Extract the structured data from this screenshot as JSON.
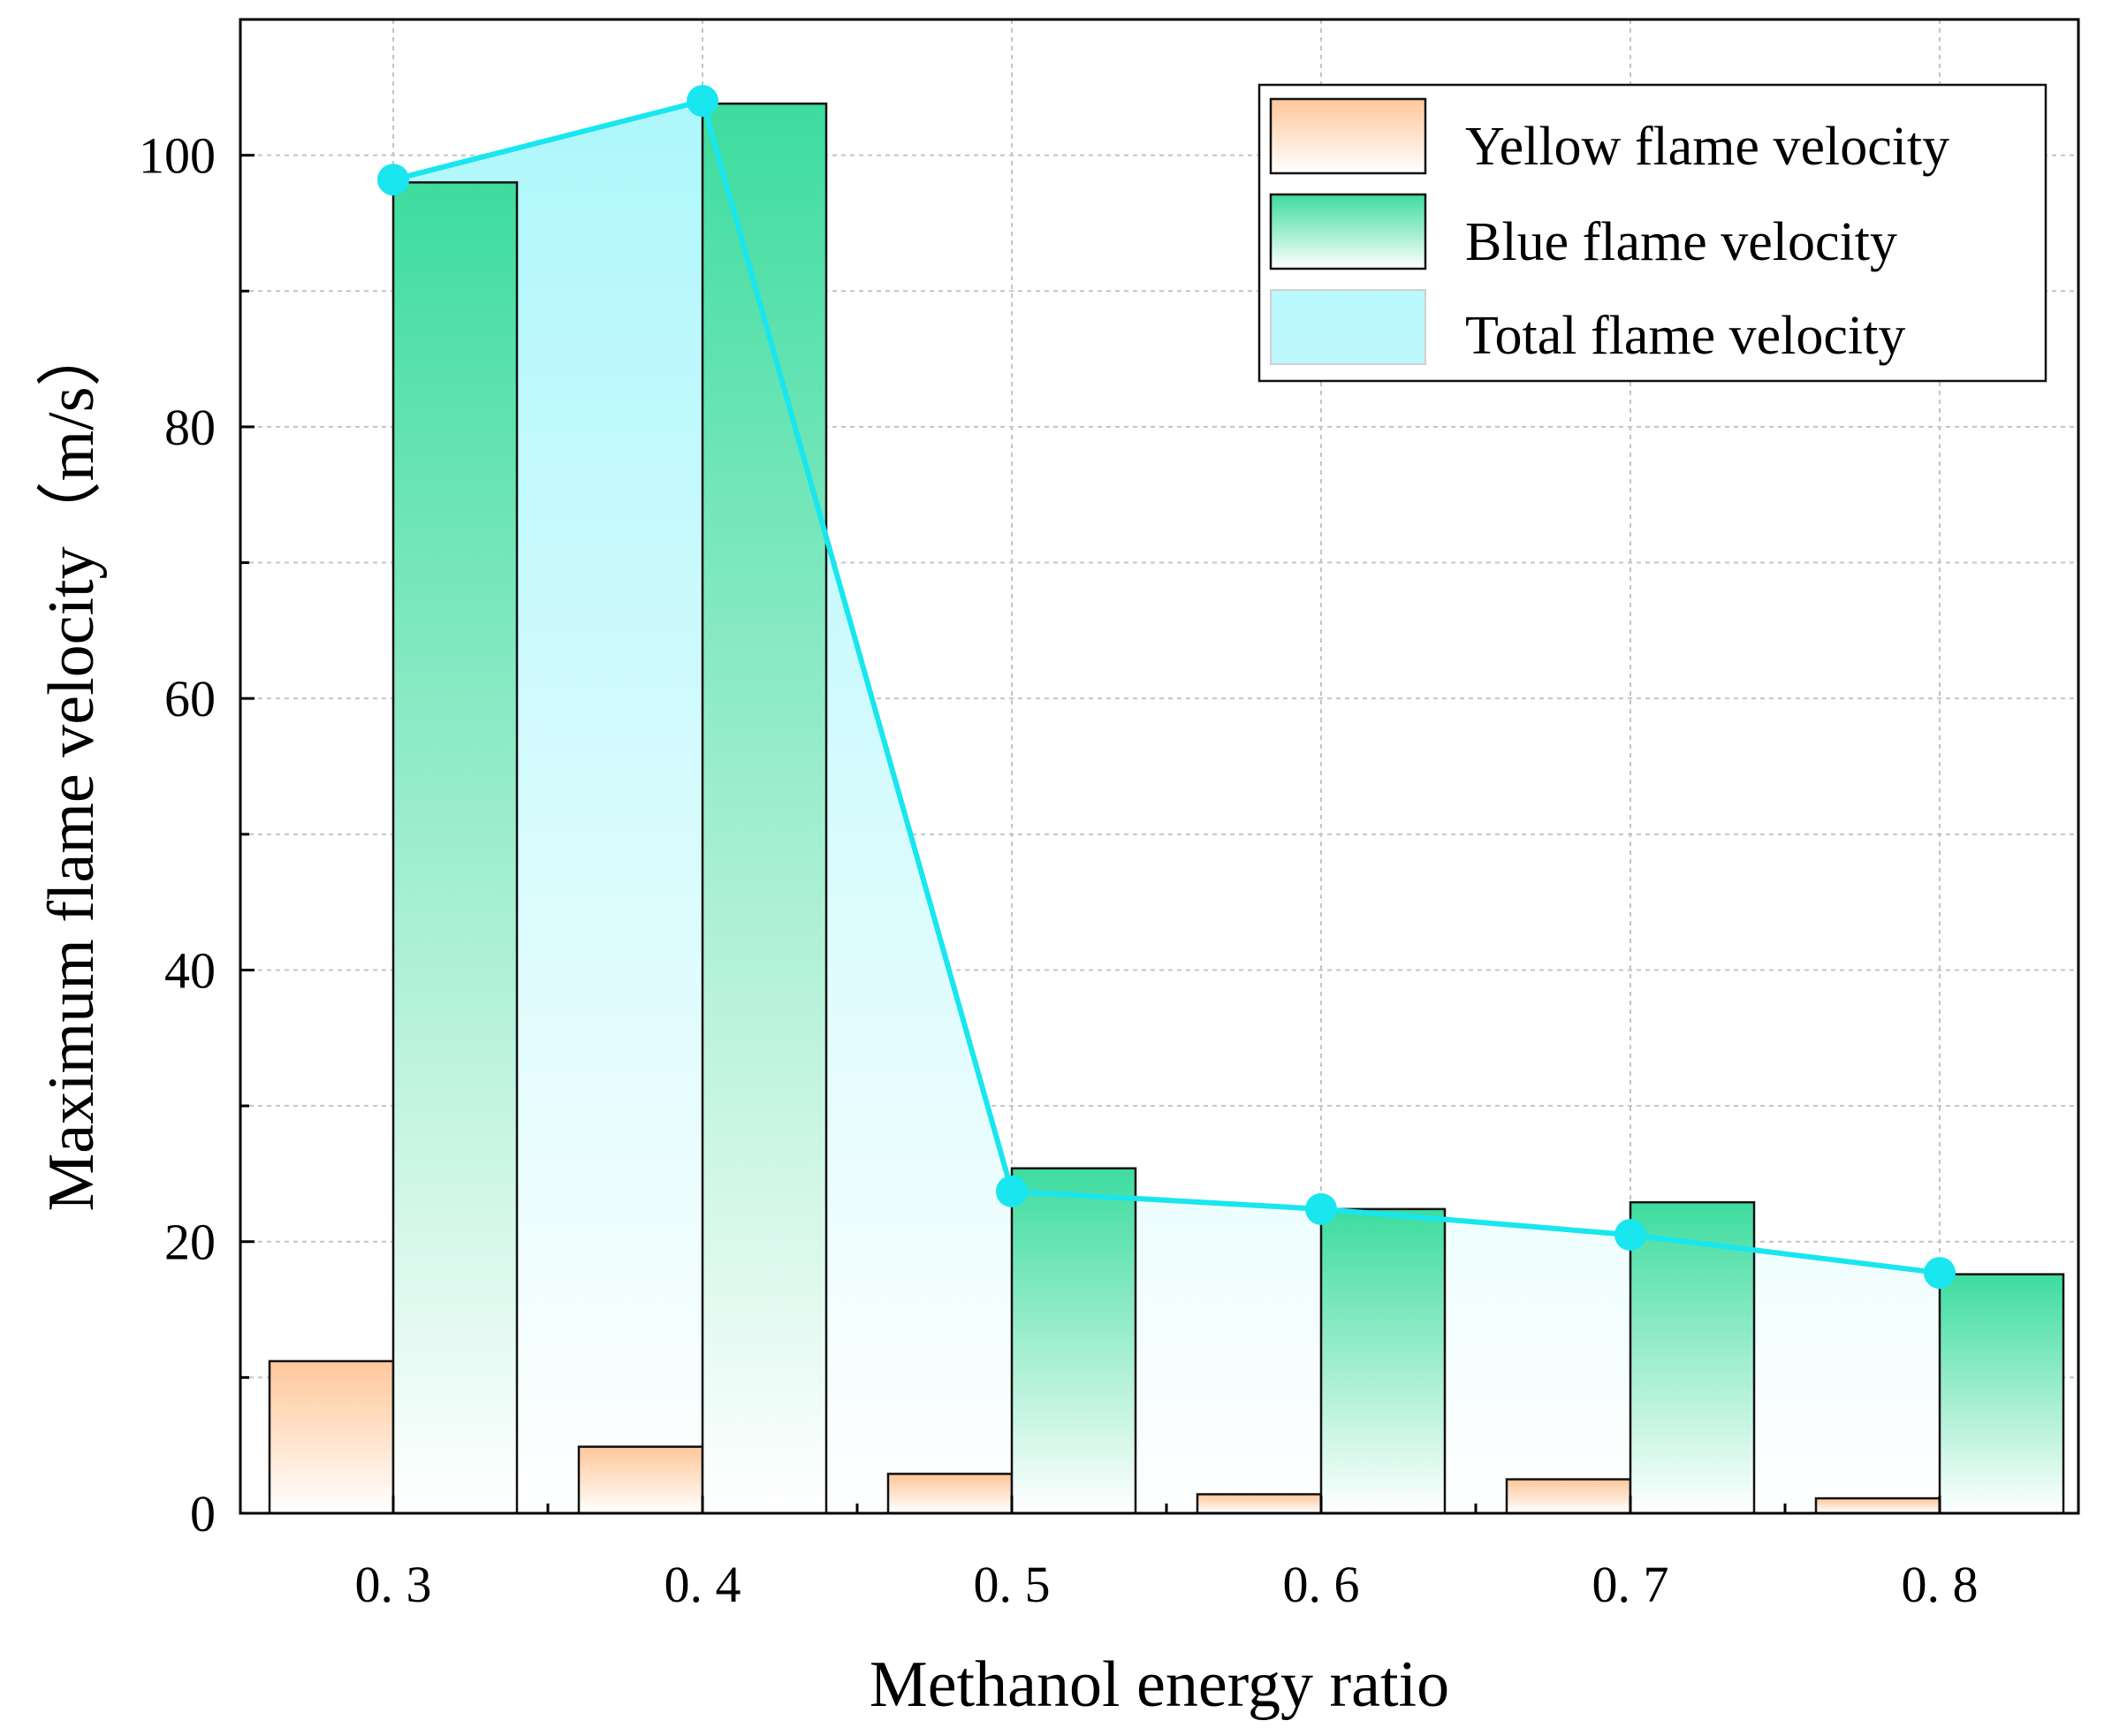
{
  "chart_data": {
    "type": "bar",
    "title": "",
    "xlabel": "Methanol energy ratio",
    "ylabel": "Maximum flame velocity（m/s）",
    "categories": [
      "0. 3",
      "0. 4",
      "0. 5",
      "0. 6",
      "0. 7",
      "0. 8"
    ],
    "ylim": [
      0,
      110
    ],
    "yticks": [
      0,
      20,
      40,
      60,
      80,
      100
    ],
    "grid": true,
    "legend_position": "top-right",
    "series": [
      {
        "name": "Yellow flame velocity",
        "kind": "bar",
        "color_top": "#ffc79a",
        "color_bottom": "#ffffff",
        "values": [
          11.2,
          4.9,
          2.9,
          1.4,
          2.5,
          1.1
        ]
      },
      {
        "name": "Blue flame velocity",
        "kind": "bar",
        "color_top": "#3ddc9e",
        "color_bottom": "#ffffff",
        "values": [
          98.0,
          103.8,
          25.4,
          22.4,
          22.9,
          17.6
        ]
      },
      {
        "name": "Total flame velocity",
        "kind": "line-area",
        "line_color": "#19e6ee",
        "fill_top": "#aef7fb",
        "fill_bottom": "#ffffff",
        "values": [
          98.2,
          104.0,
          23.7,
          22.4,
          20.5,
          17.7
        ]
      }
    ]
  }
}
